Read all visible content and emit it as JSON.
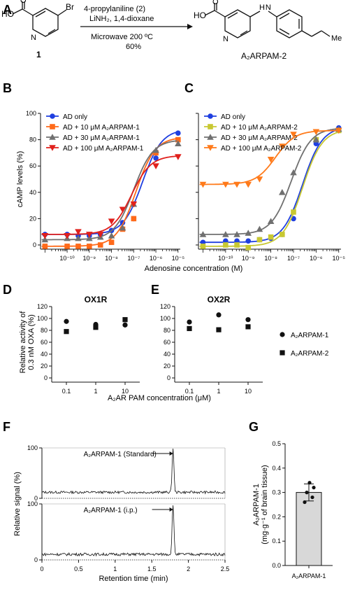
{
  "panels": {
    "A": "A",
    "B": "B",
    "C": "C",
    "D": "D",
    "E": "E",
    "F": "F",
    "G": "G"
  },
  "scheme": {
    "reactant": "1",
    "reactant_substituent": "Br",
    "acid_group": "HO",
    "ring_n": "N",
    "ring_carbonyl": "O",
    "amine_nh": "H N",
    "alkyl_end": "Me",
    "reagent_line1": "4-propylaniline (2)",
    "reagent_line2": "LiNH₂, 1,4-dioxane",
    "condition_line1": "Microwave 200 ºC",
    "condition_line2": "60%",
    "product": "A₂ARPAM-2"
  },
  "colors": {
    "blue": "#1f3fe0",
    "orange": "#ff6a1a",
    "gray": "#707070",
    "red": "#e0201c",
    "olive": "#c8c832",
    "orangeC": "#ff7a1a"
  },
  "chart_data": [
    {
      "id": "B",
      "type": "line",
      "ylabel": "cAMP levels (%)",
      "ylim": [
        0,
        100
      ],
      "yticks": [
        "0",
        "20",
        "40",
        "60",
        "80",
        "100"
      ],
      "xticks": [
        "10⁻¹⁰",
        "10⁻⁹",
        "10⁻⁸",
        "10⁻⁷",
        "10⁻⁶",
        "10⁻⁵"
      ],
      "legend": "top-left",
      "series": [
        {
          "name": "AD only",
          "marker": "circle",
          "color": "#1f3fe0",
          "logx": [
            -11,
            -10,
            -9.5,
            -9,
            -8.5,
            -8,
            -7.5,
            -7,
            -6,
            -5
          ],
          "y": [
            8,
            8,
            7,
            7,
            8,
            11,
            17,
            20,
            66,
            85
          ],
          "curve": {
            "bottom": 8,
            "top": 88,
            "logec50": -6.6
          }
        },
        {
          "name": "AD + 10 μM A₂ARPAM-1",
          "marker": "square",
          "color": "#ff6a1a",
          "logx": [
            -11,
            -10,
            -9.5,
            -9,
            -8.5,
            -8,
            -7.5,
            -7,
            -6,
            -5
          ],
          "y": [
            -1,
            -1,
            -1,
            -1,
            0,
            2,
            12,
            20,
            70,
            80
          ],
          "curve": {
            "bottom": -1,
            "top": 82,
            "logec50": -6.9
          }
        },
        {
          "name": "AD + 30 μM A₂ARPAM-1",
          "marker": "triangle-up",
          "color": "#707070",
          "logx": [
            -11,
            -10,
            -9.5,
            -9,
            -8.5,
            -8,
            -7.5,
            -7,
            -6,
            -5
          ],
          "y": [
            4,
            5,
            5,
            5,
            6,
            7,
            13,
            31,
            72,
            77
          ],
          "curve": {
            "bottom": 4,
            "top": 80,
            "logec50": -7.0
          }
        },
        {
          "name": "AD + 100 μM A₂ARPAM-1",
          "marker": "triangle-down",
          "color": "#e0201c",
          "logx": [
            -11,
            -10,
            -9.5,
            -9,
            -8.5,
            -8,
            -7.5,
            -7,
            -6,
            -5
          ],
          "y": [
            7,
            7,
            10,
            8,
            8,
            18,
            27,
            31,
            60,
            67
          ],
          "curve": {
            "bottom": 8,
            "top": 68,
            "logec50": -7.1
          }
        }
      ]
    },
    {
      "id": "C",
      "type": "line",
      "xlabel": "Adenosine concentration (M)",
      "ylim": [
        0,
        100
      ],
      "yticks": [
        "0",
        "20",
        "40",
        "60",
        "80",
        "100"
      ],
      "xticks": [
        "10⁻¹⁰",
        "10⁻⁹",
        "10⁻⁸",
        "10⁻⁷",
        "10⁻⁶",
        "10⁻⁵"
      ],
      "legend": "top-left",
      "series": [
        {
          "name": "AD only",
          "marker": "circle",
          "color": "#1f3fe0",
          "logx": [
            -11,
            -10,
            -9.5,
            -9,
            -8.5,
            -8,
            -7.5,
            -7,
            -6,
            -5
          ],
          "y": [
            2,
            3,
            3,
            3,
            4,
            5,
            8,
            20,
            77,
            89
          ],
          "curve": {
            "bottom": 2,
            "top": 90,
            "logec50": -6.6
          }
        },
        {
          "name": "AD + 10 μM A₂ARPAM-2",
          "marker": "square",
          "color": "#c8c832",
          "logx": [
            -11,
            -10,
            -9.5,
            -9,
            -8.5,
            -8,
            -7.5,
            -7,
            -6,
            -5
          ],
          "y": [
            -1,
            0,
            0,
            -2,
            4,
            6,
            8,
            25,
            80,
            87
          ],
          "curve": {
            "bottom": -1,
            "top": 88,
            "logec50": -6.6
          }
        },
        {
          "name": "AD + 30 μM A₂ARPAM-2",
          "marker": "triangle-up",
          "color": "#707070",
          "logx": [
            -11,
            -10,
            -9.5,
            -9,
            -8.5,
            -8,
            -7.5,
            -7,
            -6,
            -5
          ],
          "y": [
            8,
            8,
            8,
            9,
            12,
            18,
            40,
            55,
            80,
            88
          ],
          "curve": {
            "bottom": 8,
            "top": 89,
            "logec50": -7.1
          }
        },
        {
          "name": "AD + 100 μM A₂ARPAM-2",
          "marker": "triangle-down",
          "color": "#ff7a1a",
          "logx": [
            -11,
            -10,
            -9.5,
            -9,
            -8.5,
            -8,
            -7.5,
            -7,
            -6,
            -5
          ],
          "y": [
            46,
            46,
            46,
            46,
            50,
            65,
            75,
            84,
            86,
            87
          ],
          "curve": {
            "bottom": 46,
            "top": 87,
            "logec50": -7.8
          }
        }
      ]
    },
    {
      "id": "D",
      "type": "scatter",
      "title": "OX1R",
      "ylabel": "Relative activity of 0.3 nM OXA (%)",
      "ylim": [
        0,
        120
      ],
      "yticks": [
        "0",
        "20",
        "40",
        "60",
        "80",
        "100",
        "120"
      ],
      "categories": [
        "0.1",
        "1",
        "10"
      ],
      "series": [
        {
          "name": "A₂ARPAM-1",
          "marker": "circle",
          "values": [
            95,
            90,
            89
          ]
        },
        {
          "name": "A₂ARPAM-2",
          "marker": "square",
          "values": [
            78,
            85,
            98
          ]
        }
      ]
    },
    {
      "id": "E",
      "type": "scatter",
      "title": "OX2R",
      "xlabel": "A₂AR PAM concentration (μM)",
      "ylim": [
        0,
        120
      ],
      "yticks": [
        "0",
        "20",
        "40",
        "60",
        "80",
        "100",
        "120"
      ],
      "categories": [
        "0.1",
        "1",
        "10"
      ],
      "legend": "right",
      "series": [
        {
          "name": "A₂ARPAM-1",
          "marker": "circle",
          "values": [
            94,
            106,
            98
          ]
        },
        {
          "name": "A₂ARPAM-2",
          "marker": "square",
          "values": [
            83,
            81,
            86
          ]
        }
      ]
    },
    {
      "id": "F",
      "type": "line",
      "xlabel": "Retention time (min)",
      "ylabel": "Relative signal (%)",
      "xlim": [
        0,
        2.5
      ],
      "xticks": [
        "0",
        "0.5",
        "1",
        "1.5",
        "2",
        "2.5"
      ],
      "yticks_top": [
        "0",
        "100"
      ],
      "yticks_bottom": [
        "0",
        "100"
      ],
      "traces": [
        {
          "label": "A₂ARPAM-1 (Standard)",
          "peak_time": 1.79,
          "peak_height": 100,
          "baseline": 12
        },
        {
          "label": "A₂ARPAM-1 (i.p.)",
          "peak_time": 1.79,
          "peak_height": 100,
          "baseline": 10
        }
      ]
    },
    {
      "id": "G",
      "type": "bar",
      "ylabel": "A₂ARPAM-1 (mg·g⁻¹ of brain tissue)",
      "ylim": [
        0,
        0.5
      ],
      "yticks": [
        "0.0",
        "0.1",
        "0.2",
        "0.3",
        "0.4",
        "0.5"
      ],
      "categories": [
        "A₂ARPAM-1"
      ],
      "values": [
        0.3
      ],
      "error": 0.035,
      "points": [
        0.26,
        0.28,
        0.3,
        0.32,
        0.34
      ]
    }
  ]
}
